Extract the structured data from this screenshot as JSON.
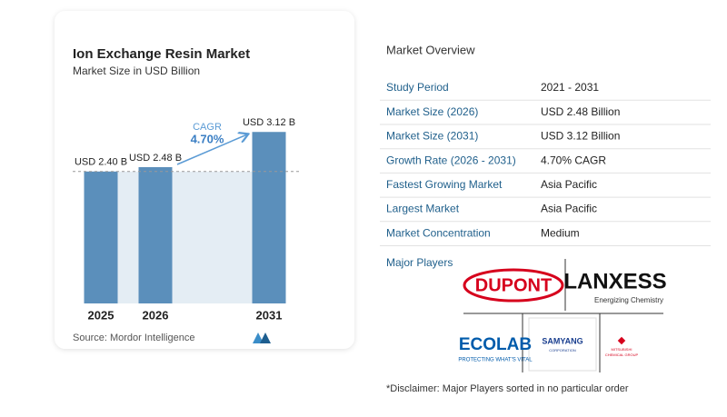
{
  "chart_data": {
    "type": "bar",
    "title": "Ion Exchange Resin Market",
    "subtitle": "Market Size in USD Billion",
    "categories": [
      "2025",
      "2026",
      "2031"
    ],
    "values": [
      2.4,
      2.48,
      3.12
    ],
    "value_labels": [
      "USD 2.40 B",
      "USD 2.48 B",
      "USD 3.12 B"
    ],
    "color": "#5b8fbb",
    "annotation": {
      "label": "CAGR",
      "value": "4.70%"
    },
    "source": "Source:  Mordor Intelligence"
  },
  "overview": {
    "title": "Market Overview",
    "rows": [
      [
        "Study Period",
        "2021 - 2031"
      ],
      [
        "Market Size (2026)",
        "USD 2.48 Billion"
      ],
      [
        "Market Size (2031)",
        "USD 3.12 Billion"
      ],
      [
        "Growth Rate (2026 - 2031)",
        "4.70% CAGR"
      ],
      [
        "Fastest Growing Market",
        "Asia Pacific"
      ],
      [
        "Largest Market",
        "Asia Pacific"
      ],
      [
        "Market Concentration",
        "Medium"
      ]
    ]
  },
  "players": {
    "title": "Major Players",
    "logos": [
      {
        "name": "DUPONT"
      },
      {
        "name": "LANXESS",
        "tagline": "Energizing Chemistry"
      },
      {
        "name": "ECOLAB",
        "tagline": "PROTECTING WHAT'S VITAL"
      },
      {
        "name": "SAMYANG",
        "tagline": "CORPORATION"
      },
      {
        "name": "MITSUBISHI",
        "tagline": "CHEMICAL GROUP"
      }
    ]
  },
  "disclaimer": "*Disclaimer: Major Players sorted in no particular order"
}
